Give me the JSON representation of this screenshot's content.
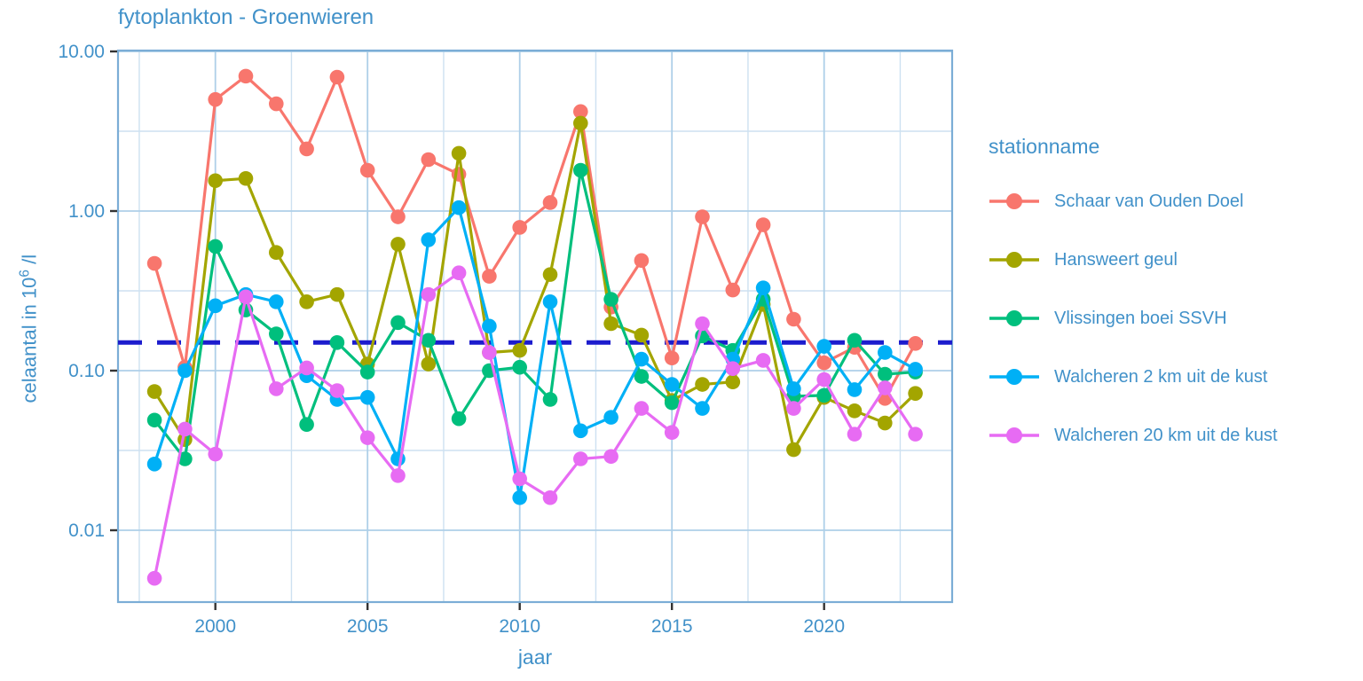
{
  "title": "fytoplankton - Groenwieren",
  "x_label": "jaar",
  "y_label": {
    "prefix": "celaantal in  10",
    "sup": "6",
    "suffix": " /l"
  },
  "legend": {
    "title": "stationname"
  },
  "colors": {
    "text_blue": "#4191c9",
    "panel_border": "#7badd6",
    "grid_major": "#aecfe8",
    "grid_minor": "#cde1f1",
    "tick_mark": "#333333",
    "reference_line": "#1c1ccd"
  },
  "chart_data": {
    "type": "line",
    "y_scale": "log10",
    "grid": true,
    "legend_position": "right",
    "xlim": [
      1996.8,
      2024.2
    ],
    "ylim": [
      0.0035,
      10.5
    ],
    "x_ticks": [
      2000,
      2005,
      2010,
      2015,
      2020
    ],
    "x_minor_ticks": [
      1997.5,
      2002.5,
      2007.5,
      2012.5,
      2017.5,
      2022.5
    ],
    "y_ticks": [
      {
        "v": 10,
        "label": "10.00"
      },
      {
        "v": 1,
        "label": "1.00"
      },
      {
        "v": 0.1,
        "label": "0.10"
      },
      {
        "v": 0.01,
        "label": "0.01"
      }
    ],
    "y_minor_ticks": [
      3.162,
      0.3162,
      0.03162
    ],
    "reference_line": {
      "y": 0.15,
      "style": "dashed",
      "color": "#1c1ccd"
    },
    "x": [
      1998,
      1999,
      2000,
      2001,
      2002,
      2003,
      2004,
      2005,
      2006,
      2007,
      2008,
      2009,
      2010,
      2011,
      2012,
      2013,
      2014,
      2015,
      2016,
      2017,
      2018,
      2019,
      2020,
      2021,
      2022,
      2023
    ],
    "series": [
      {
        "name": "Schaar van Ouden Doel",
        "color": "#F8766D",
        "values": [
          0.47,
          0.105,
          5.0,
          7.0,
          4.7,
          2.45,
          6.9,
          1.8,
          0.92,
          2.1,
          1.7,
          0.39,
          0.79,
          1.13,
          4.2,
          0.25,
          0.49,
          0.12,
          0.92,
          0.32,
          0.82,
          0.21,
          0.112,
          0.14,
          0.067,
          0.148
        ]
      },
      {
        "name": "Hansweert geul",
        "color": "#A3A500",
        "values": [
          0.074,
          0.037,
          1.55,
          1.6,
          0.55,
          0.27,
          0.3,
          0.11,
          0.62,
          0.11,
          2.3,
          0.13,
          0.134,
          0.4,
          3.55,
          0.197,
          0.167,
          0.065,
          0.082,
          0.085,
          0.26,
          0.032,
          0.068,
          0.056,
          0.047,
          0.072
        ]
      },
      {
        "name": "Vlissingen boei SSVH",
        "color": "#00BF7D",
        "values": [
          0.049,
          0.028,
          0.6,
          0.24,
          0.17,
          0.046,
          0.15,
          0.098,
          0.2,
          0.155,
          0.05,
          0.1,
          0.105,
          0.066,
          1.8,
          0.28,
          0.092,
          0.063,
          0.165,
          0.134,
          0.28,
          0.069,
          0.07,
          0.155,
          0.095,
          0.098
        ]
      },
      {
        "name": "Walcheren 2 km uit de kust",
        "color": "#00B0F6",
        "values": [
          0.026,
          0.1,
          0.255,
          0.3,
          0.27,
          0.093,
          0.066,
          0.068,
          0.028,
          0.66,
          1.05,
          0.19,
          0.016,
          0.27,
          0.042,
          0.051,
          0.118,
          0.082,
          0.058,
          0.118,
          0.33,
          0.077,
          0.142,
          0.076,
          0.13,
          0.102
        ]
      },
      {
        "name": "Walcheren 20 km uit de kust",
        "color": "#E76BF3",
        "values": [
          0.005,
          0.043,
          0.03,
          0.29,
          0.077,
          0.104,
          0.075,
          0.038,
          0.022,
          0.3,
          0.41,
          0.13,
          0.021,
          0.016,
          0.028,
          0.029,
          0.058,
          0.041,
          0.197,
          0.103,
          0.116,
          0.058,
          0.088,
          0.04,
          0.078,
          0.04
        ]
      }
    ]
  }
}
